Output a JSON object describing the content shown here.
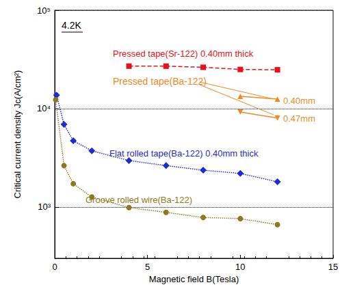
{
  "chart_data": {
    "type": "line",
    "x_label": "Magnetic field B(Tesla)",
    "y_label": "Critical current density Jc(A/cm²)",
    "log": "y",
    "grid": "y",
    "xlim": [
      0,
      15
    ],
    "xticks": [
      0,
      5,
      10,
      15
    ],
    "ylim": [
      300,
      100000
    ],
    "yticks": [
      {
        "value": 1000,
        "label": "10³"
      },
      {
        "value": 10000,
        "label": "10⁴"
      },
      {
        "value": 100000,
        "label": "10⁵"
      }
    ],
    "annotations": [
      {
        "text": "4.2K"
      },
      {
        "text": "Pressed tape(Ba-122)",
        "color": "#f08a24"
      }
    ],
    "series": [
      {
        "name": "Pressed tape(Sr-122) 0.40mm thick",
        "color": "#e8101a",
        "marker": "square",
        "line_style": "dashed",
        "x": [
          4,
          6,
          8,
          10,
          12
        ],
        "values": [
          27000,
          27000,
          26300,
          25000,
          24800
        ]
      },
      {
        "name": "0.40mm",
        "color": "#f08a24",
        "marker": "triangle",
        "line_style": "solid",
        "x": [
          10,
          12
        ],
        "values": [
          13300,
          12500
        ]
      },
      {
        "name": "0.47mm",
        "color": "#f08a24",
        "marker": "triangle-down",
        "line_style": "solid",
        "x": [
          10,
          12
        ],
        "values": [
          9200,
          8000
        ]
      },
      {
        "name": "Flat rolled tape(Ba-122) 0.40mm thick",
        "color": "#1f2ad6",
        "marker": "diamond",
        "line_style": "dotted",
        "x": [
          0.1,
          0.5,
          1,
          2,
          4,
          6,
          8,
          10,
          12
        ],
        "values": [
          13700,
          6900,
          4700,
          3720,
          2960,
          2630,
          2360,
          2190,
          1800
        ]
      },
      {
        "name": "Groove rolled wire(Ba-122)",
        "color": "#8c7a22",
        "marker": "circle",
        "line_style": "dotted",
        "x": [
          0.05,
          0.5,
          1,
          2,
          4,
          6,
          8,
          10,
          12
        ],
        "values": [
          12300,
          2630,
          1720,
          1260,
          985,
          880,
          780,
          760,
          660
        ]
      }
    ]
  }
}
